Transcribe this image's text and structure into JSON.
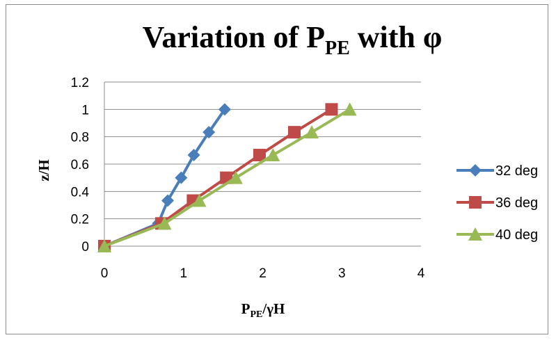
{
  "chart_data": {
    "type": "line",
    "title": {
      "main": "Variation of P",
      "sub": "PE",
      "tail": " with φ"
    },
    "xlabel": {
      "main": "P",
      "sub": "PE",
      "tail": "/γH"
    },
    "ylabel": "z/H",
    "xlim": [
      0,
      4
    ],
    "ylim": [
      0,
      1.2
    ],
    "xticks": [
      "0",
      "1",
      "2",
      "3",
      "4"
    ],
    "yticks": [
      "0",
      "0.2",
      "0.4",
      "0.6",
      "0.8",
      "1",
      "1.2"
    ],
    "grid": "horizontal",
    "legend_position": "right",
    "series": [
      {
        "name": "32 deg",
        "marker": "diamond",
        "color": "#4a7ebb",
        "points": [
          [
            0,
            0
          ],
          [
            0.68,
            0.166
          ],
          [
            0.8,
            0.333
          ],
          [
            0.97,
            0.5
          ],
          [
            1.13,
            0.666
          ],
          [
            1.32,
            0.833
          ],
          [
            1.52,
            1.0
          ]
        ]
      },
      {
        "name": "36 deg",
        "marker": "square",
        "color": "#be4b48",
        "points": [
          [
            0,
            0
          ],
          [
            0.72,
            0.166
          ],
          [
            1.12,
            0.333
          ],
          [
            1.54,
            0.5
          ],
          [
            1.96,
            0.666
          ],
          [
            2.4,
            0.833
          ],
          [
            2.87,
            1.0
          ]
        ]
      },
      {
        "name": "40 deg",
        "marker": "triangle",
        "color": "#98b954",
        "points": [
          [
            0,
            0
          ],
          [
            0.76,
            0.166
          ],
          [
            1.2,
            0.333
          ],
          [
            1.66,
            0.5
          ],
          [
            2.13,
            0.666
          ],
          [
            2.62,
            0.833
          ],
          [
            3.1,
            1.0
          ]
        ]
      }
    ]
  }
}
